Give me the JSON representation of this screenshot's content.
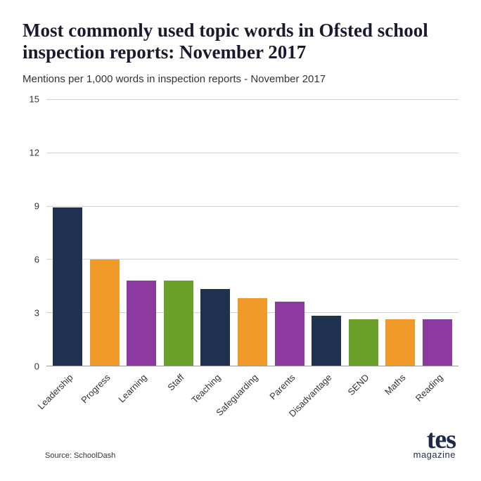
{
  "title": "Most commonly used topic words in Ofsted school inspection reports: November 2017",
  "title_fontsize": 27,
  "title_color": "#1a1a2e",
  "subtitle": "Mentions per 1,000 words in inspection reports - November 2017",
  "subtitle_fontsize": 15,
  "source": "Source: SchoolDash",
  "logo": {
    "main": "tes",
    "sub": "magazine"
  },
  "chart": {
    "type": "bar",
    "ylim": [
      0,
      15
    ],
    "ytick_step": 3,
    "yticks": [
      0,
      3,
      6,
      9,
      12,
      15
    ],
    "grid_color": "#d0d0d0",
    "axis_color": "#999999",
    "background_color": "#ffffff",
    "label_fontsize": 13,
    "bar_width": 0.8,
    "categories": [
      "Leadership",
      "Progress",
      "Learning",
      "Staff",
      "Teaching",
      "Safeguarding",
      "Parents",
      "Disadvantage",
      "SEND",
      "Maths",
      "Reading"
    ],
    "values": [
      8.9,
      6.0,
      4.8,
      4.8,
      4.3,
      3.8,
      3.6,
      2.8,
      2.6,
      2.6,
      2.6
    ],
    "bar_colors": [
      "#1e3250",
      "#f09a2a",
      "#8d3aa0",
      "#6aa02a",
      "#1e3250",
      "#f09a2a",
      "#8d3aa0",
      "#1e3250",
      "#6aa02a",
      "#f09a2a",
      "#8d3aa0"
    ]
  }
}
